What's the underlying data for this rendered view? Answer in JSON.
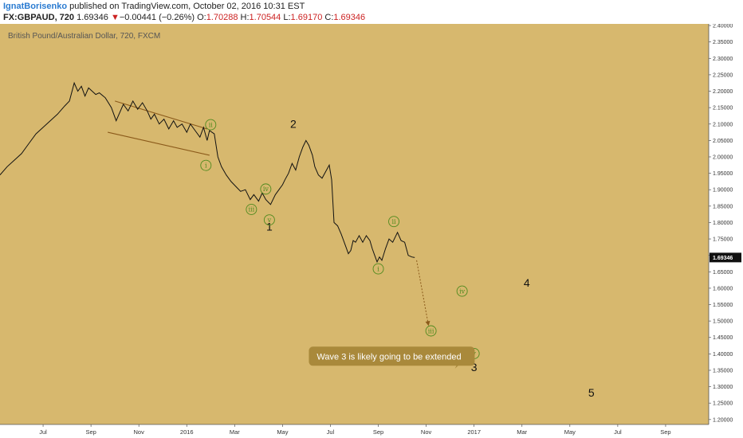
{
  "header": {
    "author": "IgnatBorisenko",
    "published": " published on TradingView.com, October 02, 2016 10:31 EST",
    "symbol": "FX:GBPAUD, 720",
    "last": "1.69346",
    "arrow": "▼",
    "change": "−0.00441 (−0.26%)",
    "o_label": "O:",
    "o_value": "1.70288",
    "h_label": "H:",
    "h_value": "1.70544",
    "l_label": "L:",
    "l_value": "1.69170",
    "c_label": "C:",
    "c_value": "1.69346"
  },
  "colors": {
    "chart_bg": "#d7b86e",
    "price_line": "#111111",
    "trendline": "#8b5a1a",
    "wave_small": "#4f8a1e",
    "callout_bg": "#a9893b",
    "projection": "#8b5a1a"
  },
  "chart_data": {
    "type": "line",
    "title": "British Pound/Australian Dollar, 720, FXCM",
    "y_ticks": [
      "2.40000",
      "2.35000",
      "2.30000",
      "2.25000",
      "2.20000",
      "2.15000",
      "2.10000",
      "2.05000",
      "2.00000",
      "1.95000",
      "1.90000",
      "1.85000",
      "1.80000",
      "1.75000",
      "1.70000",
      "1.65000",
      "1.60000",
      "1.55000",
      "1.50000",
      "1.45000",
      "1.40000",
      "1.35000",
      "1.30000",
      "1.25000",
      "1.20000"
    ],
    "ylim": [
      1.185,
      2.405
    ],
    "x_ticks": [
      "Jul",
      "Sep",
      "Nov",
      "2016",
      "Mar",
      "May",
      "Jul",
      "Sep",
      "Nov",
      "2017",
      "Mar",
      "May",
      "Jul",
      "Sep"
    ],
    "x_tick_months": [
      0,
      2,
      4,
      6,
      8,
      10,
      12,
      14,
      16,
      18,
      20,
      22,
      24,
      26
    ],
    "xlim_months": [
      -1.8,
      27.8
    ],
    "last_price_label": "1.69346",
    "last_price": 1.69346,
    "series": [
      {
        "points": [
          [
            -1.8,
            1.945
          ],
          [
            -1.5,
            1.97
          ],
          [
            -1.2,
            1.99
          ],
          [
            -0.9,
            2.01
          ],
          [
            -0.6,
            2.04
          ],
          [
            -0.3,
            2.07
          ],
          [
            0,
            2.09
          ],
          [
            0.3,
            2.11
          ],
          [
            0.6,
            2.13
          ],
          [
            0.9,
            2.155
          ],
          [
            1.1,
            2.17
          ],
          [
            1.3,
            2.225
          ],
          [
            1.45,
            2.2
          ],
          [
            1.6,
            2.215
          ],
          [
            1.75,
            2.185
          ],
          [
            1.9,
            2.21
          ],
          [
            2.05,
            2.2
          ],
          [
            2.2,
            2.19
          ],
          [
            2.35,
            2.195
          ],
          [
            2.6,
            2.18
          ],
          [
            2.85,
            2.15
          ],
          [
            3.05,
            2.11
          ],
          [
            3.2,
            2.135
          ],
          [
            3.35,
            2.16
          ],
          [
            3.55,
            2.14
          ],
          [
            3.75,
            2.17
          ],
          [
            3.95,
            2.145
          ],
          [
            4.15,
            2.165
          ],
          [
            4.35,
            2.14
          ],
          [
            4.5,
            2.115
          ],
          [
            4.65,
            2.13
          ],
          [
            4.85,
            2.1
          ],
          [
            5.05,
            2.115
          ],
          [
            5.25,
            2.085
          ],
          [
            5.45,
            2.11
          ],
          [
            5.6,
            2.09
          ],
          [
            5.8,
            2.1
          ],
          [
            6.0,
            2.075
          ],
          [
            6.15,
            2.1
          ],
          [
            6.35,
            2.08
          ],
          [
            6.55,
            2.06
          ],
          [
            6.7,
            2.09
          ],
          [
            6.85,
            2.05
          ],
          [
            6.95,
            2.08
          ],
          [
            7.15,
            2.07
          ],
          [
            7.3,
            2.0
          ],
          [
            7.45,
            1.97
          ],
          [
            7.65,
            1.945
          ],
          [
            7.85,
            1.925
          ],
          [
            8.05,
            1.91
          ],
          [
            8.25,
            1.895
          ],
          [
            8.45,
            1.9
          ],
          [
            8.65,
            1.87
          ],
          [
            8.8,
            1.885
          ],
          [
            9.0,
            1.865
          ],
          [
            9.15,
            1.89
          ],
          [
            9.3,
            1.87
          ],
          [
            9.5,
            1.855
          ],
          [
            9.7,
            1.885
          ],
          [
            9.85,
            1.9
          ],
          [
            10.0,
            1.915
          ],
          [
            10.1,
            1.93
          ],
          [
            10.25,
            1.95
          ],
          [
            10.4,
            1.98
          ],
          [
            10.55,
            1.96
          ],
          [
            10.7,
            2.0
          ],
          [
            10.85,
            2.03
          ],
          [
            10.98,
            2.05
          ],
          [
            11.1,
            2.035
          ],
          [
            11.25,
            2.005
          ],
          [
            11.35,
            1.97
          ],
          [
            11.5,
            1.945
          ],
          [
            11.65,
            1.935
          ],
          [
            11.8,
            1.955
          ],
          [
            11.95,
            1.975
          ],
          [
            12.05,
            1.93
          ],
          [
            12.15,
            1.8
          ],
          [
            12.3,
            1.79
          ],
          [
            12.45,
            1.765
          ],
          [
            12.6,
            1.735
          ],
          [
            12.75,
            1.705
          ],
          [
            12.85,
            1.715
          ],
          [
            12.95,
            1.745
          ],
          [
            13.05,
            1.74
          ],
          [
            13.2,
            1.76
          ],
          [
            13.35,
            1.74
          ],
          [
            13.5,
            1.76
          ],
          [
            13.65,
            1.745
          ],
          [
            13.75,
            1.72
          ],
          [
            13.85,
            1.7
          ],
          [
            13.95,
            1.68
          ],
          [
            14.05,
            1.695
          ],
          [
            14.15,
            1.685
          ],
          [
            14.3,
            1.72
          ],
          [
            14.45,
            1.75
          ],
          [
            14.6,
            1.74
          ],
          [
            14.8,
            1.77
          ],
          [
            14.95,
            1.745
          ],
          [
            15.1,
            1.74
          ],
          [
            15.25,
            1.7
          ],
          [
            15.4,
            1.695
          ],
          [
            15.52,
            1.69346
          ]
        ]
      }
    ],
    "trendlines": [
      {
        "from": [
          3.0,
          2.17
        ],
        "to": [
          6.85,
          2.085
        ]
      },
      {
        "from": [
          2.7,
          2.075
        ],
        "to": [
          6.95,
          2.005
        ]
      }
    ],
    "projection": {
      "from": [
        15.6,
        1.685
      ],
      "to": [
        16.1,
        1.485
      ]
    },
    "wave_labels_big": [
      {
        "text": "2",
        "x": 10.45,
        "y": 2.088
      },
      {
        "text": "1",
        "x": 9.45,
        "y": 1.775
      },
      {
        "text": "4",
        "x": 20.2,
        "y": 1.605
      },
      {
        "text": "3",
        "x": 18.0,
        "y": 1.348
      },
      {
        "text": "5",
        "x": 22.9,
        "y": 1.27
      }
    ],
    "wave_labels_small": [
      {
        "text": "ii",
        "x": 7.0,
        "y": 2.098
      },
      {
        "text": "i",
        "x": 6.8,
        "y": 1.974
      },
      {
        "text": "iv",
        "x": 9.3,
        "y": 1.902
      },
      {
        "text": "iii",
        "x": 8.7,
        "y": 1.84
      },
      {
        "text": "v",
        "x": 9.45,
        "y": 1.808
      },
      {
        "text": "ii",
        "x": 14.65,
        "y": 1.803
      },
      {
        "text": "i",
        "x": 14.0,
        "y": 1.659
      },
      {
        "text": "iv",
        "x": 17.5,
        "y": 1.591
      },
      {
        "text": "iii",
        "x": 16.2,
        "y": 1.47
      },
      {
        "text": "v",
        "x": 18.0,
        "y": 1.401
      }
    ],
    "annotation": {
      "text": "Wave 3 is likely going to be extended",
      "x": 11.1,
      "y": 1.422,
      "pointer": [
        17.2,
        1.355
      ]
    }
  }
}
